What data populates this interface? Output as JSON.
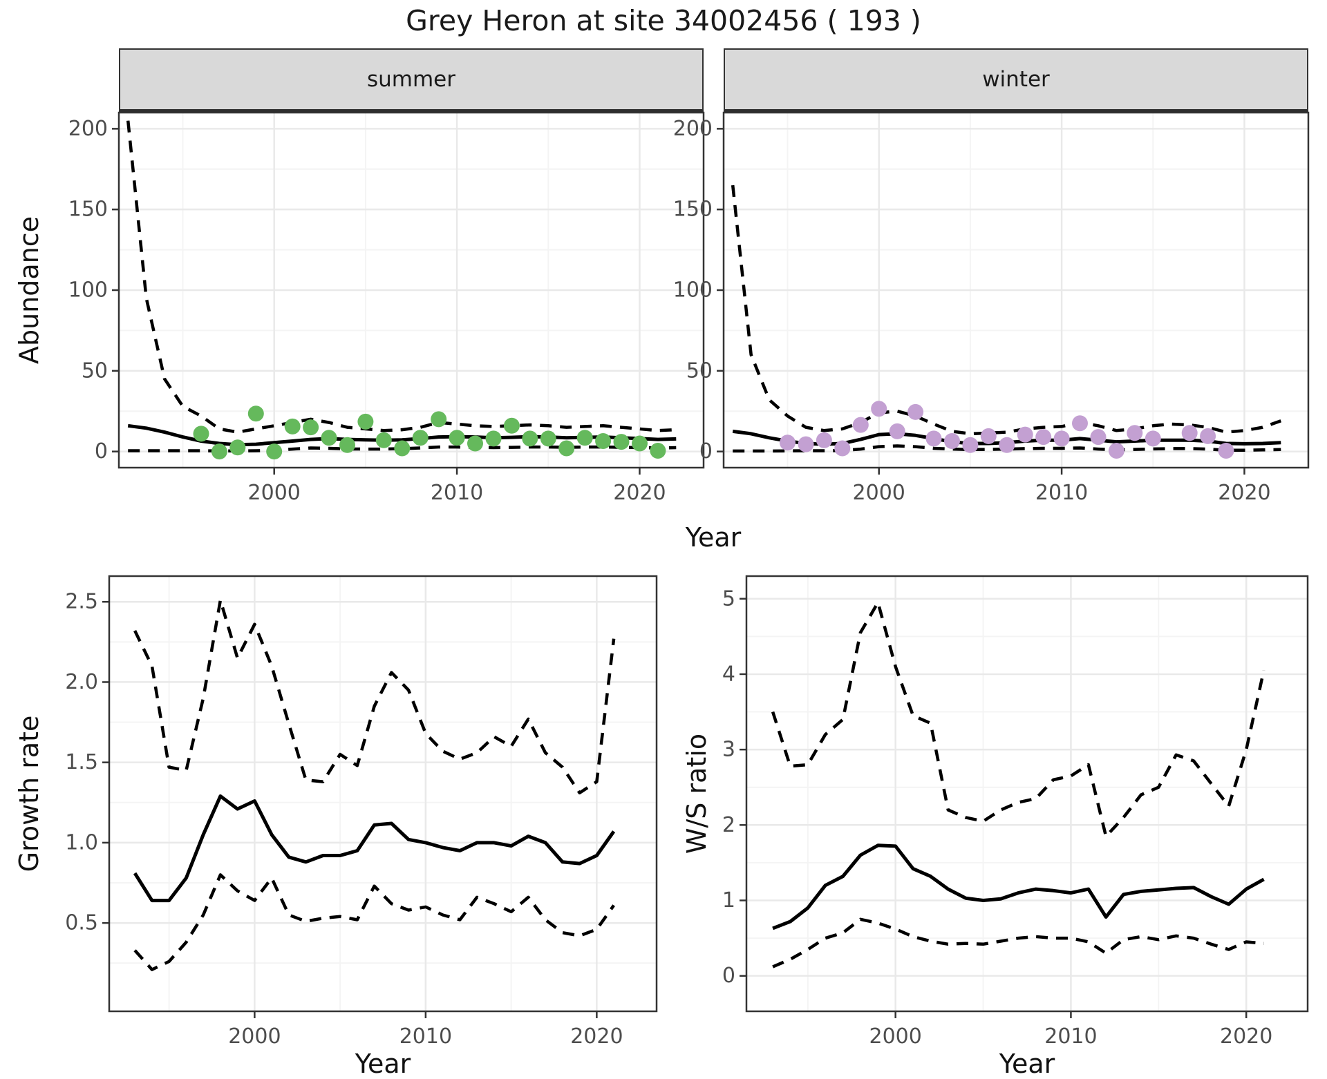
{
  "page": {
    "title": "Grey Heron at site 34002456 ( 193 )"
  },
  "colors": {
    "summer_point": "#65B95C",
    "winter_point": "#C3A0D2",
    "line": "#000000",
    "grid_major": "#E9E9E9",
    "grid_minor": "#F4F4F4",
    "panel_border": "#333333",
    "strip_bg": "#D9D9D9",
    "tick_text": "#4D4D4D",
    "axis_text": "#111111"
  },
  "facets": {
    "summer_label": "summer",
    "winter_label": "winter"
  },
  "axes": {
    "abundance_label": "Abundance",
    "year_label": "Year",
    "growth_label": "Growth rate",
    "ws_label": "W/S ratio"
  },
  "chart_data": [
    {
      "id": "abundance-summer",
      "type": "line",
      "facet": "summer",
      "xlabel": "Year",
      "ylabel": "Abundance",
      "xlim": [
        1991.5,
        2023.5
      ],
      "ylim": [
        -10,
        210
      ],
      "xticks": [
        2000,
        2010,
        2020
      ],
      "xtick_labels": [
        "2000",
        "2010",
        "2020"
      ],
      "xminor": [
        1995,
        2005,
        2015
      ],
      "yticks": [
        0,
        50,
        100,
        150,
        200
      ],
      "ytick_labels": [
        "0",
        "50",
        "100",
        "150",
        "200"
      ],
      "yminor": [
        25,
        75,
        125,
        175
      ],
      "series": [
        {
          "name": "upper_ci",
          "style": "dashed",
          "x": [
            1992,
            1993,
            1994,
            1995,
            1996,
            1997,
            1998,
            1999,
            2000,
            2001,
            2002,
            2003,
            2004,
            2005,
            2006,
            2007,
            2008,
            2009,
            2010,
            2011,
            2012,
            2013,
            2014,
            2015,
            2016,
            2017,
            2018,
            2019,
            2020,
            2021,
            2022
          ],
          "y": [
            205,
            95,
            45,
            28,
            22,
            14,
            12,
            14,
            16,
            18,
            20,
            18,
            15,
            14,
            13,
            13.5,
            15,
            18,
            17,
            16,
            15.5,
            16,
            16.5,
            16,
            15,
            15.5,
            16,
            15,
            14,
            13,
            13.5
          ]
        },
        {
          "name": "fit",
          "style": "solid",
          "x": [
            1992,
            1993,
            1994,
            1995,
            1996,
            1997,
            1998,
            1999,
            2000,
            2001,
            2002,
            2003,
            2004,
            2005,
            2006,
            2007,
            2008,
            2009,
            2010,
            2011,
            2012,
            2013,
            2014,
            2015,
            2016,
            2017,
            2018,
            2019,
            2020,
            2021,
            2022
          ],
          "y": [
            16,
            14.5,
            12,
            9,
            6.5,
            5,
            4.2,
            4.5,
            5.5,
            6.5,
            7.5,
            8,
            7.5,
            7.2,
            7,
            7.2,
            8,
            9,
            9.2,
            9,
            8.5,
            8.8,
            9.2,
            9,
            8.5,
            8.8,
            9,
            8.5,
            8,
            7.5,
            7.8
          ]
        },
        {
          "name": "lower_ci",
          "style": "dashed",
          "x": [
            1992,
            1993,
            1994,
            1995,
            1996,
            1997,
            1998,
            1999,
            2000,
            2001,
            2002,
            2003,
            2004,
            2005,
            2006,
            2007,
            2008,
            2009,
            2010,
            2011,
            2012,
            2013,
            2014,
            2015,
            2016,
            2017,
            2018,
            2019,
            2020,
            2021,
            2022
          ],
          "y": [
            0.5,
            0.5,
            0.5,
            0.5,
            0.5,
            0.4,
            0.4,
            0.5,
            0.8,
            1.5,
            2.2,
            2,
            1.6,
            1.5,
            1.5,
            1.8,
            2.2,
            2.8,
            2.8,
            2.6,
            2.4,
            2.6,
            2.8,
            2.8,
            2.6,
            2.8,
            2.8,
            2.6,
            2.4,
            2.2,
            2.4
          ]
        }
      ],
      "points": {
        "name": "summer-observations",
        "color_key": "summer_point",
        "x": [
          1996,
          1997,
          1998,
          1999,
          2000,
          2001,
          2002,
          2003,
          2004,
          2005,
          2006,
          2007,
          2008,
          2009,
          2010,
          2011,
          2012,
          2013,
          2014,
          2015,
          2016,
          2017,
          2018,
          2019,
          2020,
          2021
        ],
        "y": [
          11,
          0,
          2.5,
          23.5,
          0,
          15.5,
          15,
          8.5,
          4,
          18.5,
          7,
          2,
          8.5,
          20,
          8.5,
          5,
          8,
          16,
          8,
          8,
          2,
          8.5,
          6.5,
          6,
          5,
          0.5
        ]
      }
    },
    {
      "id": "abundance-winter",
      "type": "line",
      "facet": "winter",
      "xlabel": "Year",
      "ylabel": "Abundance",
      "xlim": [
        1991.5,
        2023.5
      ],
      "ylim": [
        -10,
        210
      ],
      "xticks": [
        2000,
        2010,
        2020
      ],
      "xtick_labels": [
        "2000",
        "2010",
        "2020"
      ],
      "xminor": [
        1995,
        2005,
        2015
      ],
      "yticks": [
        0,
        50,
        100,
        150,
        200
      ],
      "ytick_labels": [
        "0",
        "50",
        "100",
        "150",
        "200"
      ],
      "yminor": [
        25,
        75,
        125,
        175
      ],
      "series": [
        {
          "name": "upper_ci",
          "style": "dashed",
          "x": [
            1992,
            1993,
            1994,
            1995,
            1996,
            1997,
            1998,
            1999,
            2000,
            2001,
            2002,
            2003,
            2004,
            2005,
            2006,
            2007,
            2008,
            2009,
            2010,
            2011,
            2012,
            2013,
            2014,
            2015,
            2016,
            2017,
            2018,
            2019,
            2020,
            2021,
            2022
          ],
          "y": [
            165,
            60,
            32,
            22,
            15,
            13,
            14,
            18,
            24,
            25,
            22,
            17,
            12.5,
            11,
            11.5,
            12,
            14,
            15,
            15.5,
            18,
            16,
            13,
            14,
            16,
            17,
            16.5,
            15,
            12,
            13,
            15,
            19
          ]
        },
        {
          "name": "fit",
          "style": "solid",
          "x": [
            1992,
            1993,
            1994,
            1995,
            1996,
            1997,
            1998,
            1999,
            2000,
            2001,
            2002,
            2003,
            2004,
            2005,
            2006,
            2007,
            2008,
            2009,
            2010,
            2011,
            2012,
            2013,
            2014,
            2015,
            2016,
            2017,
            2018,
            2019,
            2020,
            2021,
            2022
          ],
          "y": [
            12.5,
            11,
            8.5,
            6.5,
            5,
            4.5,
            5,
            7.5,
            10.5,
            11,
            10,
            8,
            6,
            5,
            5,
            5.5,
            6.5,
            7,
            7,
            8,
            7,
            6,
            6.5,
            7,
            7,
            7,
            6.5,
            5,
            4.8,
            5,
            5.5
          ]
        },
        {
          "name": "lower_ci",
          "style": "dashed",
          "x": [
            1992,
            1993,
            1994,
            1995,
            1996,
            1997,
            1998,
            1999,
            2000,
            2001,
            2002,
            2003,
            2004,
            2005,
            2006,
            2007,
            2008,
            2009,
            2010,
            2011,
            2012,
            2013,
            2014,
            2015,
            2016,
            2017,
            2018,
            2019,
            2020,
            2021,
            2022
          ],
          "y": [
            0.3,
            0.3,
            0.3,
            0.4,
            0.5,
            0.5,
            0.6,
            1.5,
            3,
            3.5,
            3,
            2,
            1.5,
            1.2,
            1.3,
            1.5,
            1.8,
            2,
            2,
            2.2,
            1.5,
            1,
            1.3,
            1.6,
            1.8,
            1.8,
            1.5,
            0.8,
            0.8,
            1,
            1.2
          ]
        }
      ],
      "points": {
        "name": "winter-observations",
        "color_key": "winter_point",
        "x": [
          1995,
          1996,
          1997,
          1998,
          1999,
          2000,
          2001,
          2002,
          2003,
          2004,
          2005,
          2006,
          2007,
          2008,
          2009,
          2010,
          2011,
          2012,
          2013,
          2014,
          2015,
          2017,
          2018,
          2019
        ],
        "y": [
          5.5,
          4.5,
          7,
          2,
          16.5,
          26.5,
          12.5,
          24.5,
          8,
          6.5,
          4,
          9.5,
          4,
          10.5,
          9,
          8,
          17.5,
          9,
          0.5,
          11.5,
          8,
          11.5,
          9.5,
          0.5
        ]
      }
    },
    {
      "id": "growth-rate",
      "type": "line",
      "xlabel": "Year",
      "ylabel": "Growth rate",
      "xlim": [
        1991.5,
        2023.5
      ],
      "ylim": [
        -0.05,
        2.66
      ],
      "xticks": [
        2000,
        2010,
        2020
      ],
      "xtick_labels": [
        "2000",
        "2010",
        "2020"
      ],
      "xminor": [
        1995,
        2005,
        2015
      ],
      "yticks": [
        0.5,
        1.0,
        1.5,
        2.0,
        2.5
      ],
      "ytick_labels": [
        "0.5",
        "1.0",
        "1.5",
        "2.0",
        "2.5"
      ],
      "yminor": [
        0.25,
        0.75,
        1.25,
        1.75,
        2.25
      ],
      "series": [
        {
          "name": "upper_ci",
          "style": "dashed",
          "x": [
            1993,
            1994,
            1995,
            1996,
            1997,
            1998,
            1999,
            2000,
            2001,
            2002,
            2003,
            2004,
            2005,
            2006,
            2007,
            2008,
            2009,
            2010,
            2011,
            2012,
            2013,
            2014,
            2015,
            2016,
            2017,
            2018,
            2019,
            2020,
            2021
          ],
          "y": [
            2.32,
            2.1,
            1.47,
            1.45,
            1.9,
            2.51,
            2.15,
            2.36,
            2.1,
            1.74,
            1.39,
            1.38,
            1.55,
            1.48,
            1.85,
            2.06,
            1.95,
            1.68,
            1.57,
            1.52,
            1.56,
            1.66,
            1.6,
            1.77,
            1.56,
            1.47,
            1.31,
            1.38,
            2.27
          ]
        },
        {
          "name": "fit",
          "style": "solid",
          "x": [
            1993,
            1994,
            1995,
            1996,
            1997,
            1998,
            1999,
            2000,
            2001,
            2002,
            2003,
            2004,
            2005,
            2006,
            2007,
            2008,
            2009,
            2010,
            2011,
            2012,
            2013,
            2014,
            2015,
            2016,
            2017,
            2018,
            2019,
            2020,
            2021
          ],
          "y": [
            0.81,
            0.64,
            0.64,
            0.78,
            1.05,
            1.29,
            1.21,
            1.26,
            1.05,
            0.91,
            0.88,
            0.92,
            0.92,
            0.95,
            1.11,
            1.12,
            1.02,
            1,
            0.97,
            0.95,
            1,
            1,
            0.98,
            1.04,
            1,
            0.88,
            0.87,
            0.92,
            1.07
          ]
        },
        {
          "name": "lower_ci",
          "style": "dashed",
          "x": [
            1993,
            1994,
            1995,
            1996,
            1997,
            1998,
            1999,
            2000,
            2001,
            2002,
            2003,
            2004,
            2005,
            2006,
            2007,
            2008,
            2009,
            2010,
            2011,
            2012,
            2013,
            2014,
            2015,
            2016,
            2017,
            2018,
            2019,
            2020,
            2021
          ],
          "y": [
            0.33,
            0.21,
            0.26,
            0.38,
            0.55,
            0.8,
            0.7,
            0.64,
            0.78,
            0.55,
            0.51,
            0.53,
            0.54,
            0.52,
            0.73,
            0.62,
            0.58,
            0.6,
            0.55,
            0.52,
            0.66,
            0.62,
            0.57,
            0.66,
            0.52,
            0.44,
            0.42,
            0.46,
            0.61
          ]
        }
      ]
    },
    {
      "id": "ws-ratio",
      "type": "line",
      "xlabel": "Year",
      "ylabel": "W/S ratio",
      "xlim": [
        1991.5,
        2023.5
      ],
      "ylim": [
        -0.47,
        5.3
      ],
      "xticks": [
        2000,
        2010,
        2020
      ],
      "xtick_labels": [
        "2000",
        "2010",
        "2020"
      ],
      "xminor": [
        1995,
        2005,
        2015
      ],
      "yticks": [
        0,
        1,
        2,
        3,
        4,
        5
      ],
      "ytick_labels": [
        "0",
        "1",
        "2",
        "3",
        "4",
        "5"
      ],
      "yminor": [
        0.5,
        1.5,
        2.5,
        3.5,
        4.5
      ],
      "series": [
        {
          "name": "upper_ci",
          "style": "dashed",
          "x": [
            1993,
            1994,
            1995,
            1996,
            1997,
            1998,
            1999,
            2000,
            2001,
            2002,
            2003,
            2004,
            2005,
            2006,
            2007,
            2008,
            2009,
            2010,
            2011,
            2012,
            2013,
            2014,
            2015,
            2016,
            2017,
            2018,
            2019,
            2020,
            2021
          ],
          "y": [
            3.5,
            2.78,
            2.8,
            3.2,
            3.4,
            4.55,
            4.95,
            4.1,
            3.45,
            3.35,
            2.2,
            2.1,
            2.05,
            2.2,
            2.3,
            2.35,
            2.6,
            2.65,
            2.8,
            1.85,
            2.1,
            2.4,
            2.5,
            2.93,
            2.85,
            2.55,
            2.25,
            3,
            4.05
          ]
        },
        {
          "name": "fit",
          "style": "solid",
          "x": [
            1993,
            1994,
            1995,
            1996,
            1997,
            1998,
            1999,
            2000,
            2001,
            2002,
            2003,
            2004,
            2005,
            2006,
            2007,
            2008,
            2009,
            2010,
            2011,
            2012,
            2013,
            2014,
            2015,
            2016,
            2017,
            2018,
            2019,
            2020,
            2021
          ],
          "y": [
            0.63,
            0.72,
            0.9,
            1.2,
            1.32,
            1.6,
            1.73,
            1.72,
            1.42,
            1.32,
            1.15,
            1.03,
            1,
            1.02,
            1.1,
            1.15,
            1.13,
            1.1,
            1.15,
            0.78,
            1.08,
            1.12,
            1.14,
            1.16,
            1.17,
            1.05,
            0.95,
            1.15,
            1.28
          ]
        },
        {
          "name": "lower_ci",
          "style": "dashed",
          "x": [
            1993,
            1994,
            1995,
            1996,
            1997,
            1998,
            1999,
            2000,
            2001,
            2002,
            2003,
            2004,
            2005,
            2006,
            2007,
            2008,
            2009,
            2010,
            2011,
            2012,
            2013,
            2014,
            2015,
            2016,
            2017,
            2018,
            2019,
            2020,
            2021
          ],
          "y": [
            0.12,
            0.22,
            0.35,
            0.5,
            0.57,
            0.75,
            0.7,
            0.62,
            0.52,
            0.46,
            0.42,
            0.43,
            0.42,
            0.46,
            0.5,
            0.52,
            0.5,
            0.5,
            0.45,
            0.3,
            0.48,
            0.52,
            0.48,
            0.53,
            0.5,
            0.42,
            0.35,
            0.45,
            0.43
          ]
        }
      ]
    }
  ]
}
